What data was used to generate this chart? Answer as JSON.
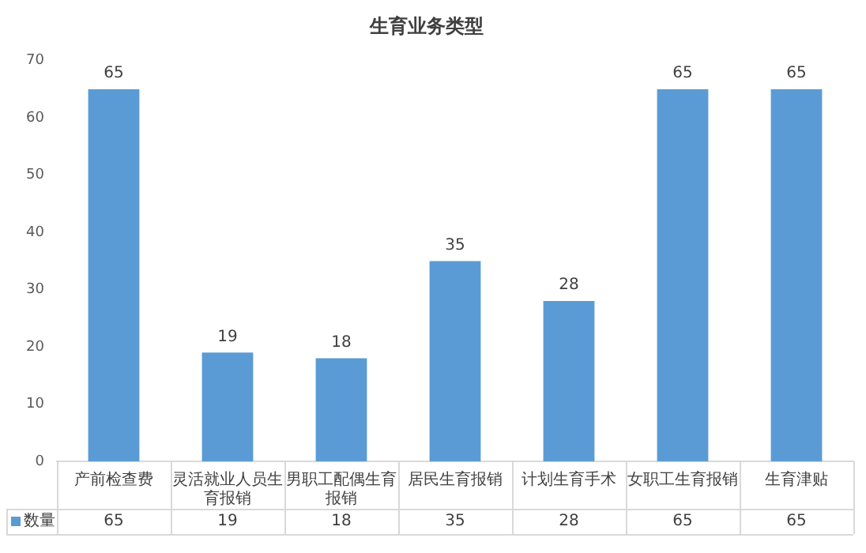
{
  "chart_data": {
    "type": "bar",
    "title": "生育业务类型",
    "categories": [
      "产前检查费",
      "灵活就业人员生育报销",
      "男职工配偶生育报销",
      "居民生育报销",
      "计划生育手术",
      "女职工生育报销",
      "生育津贴"
    ],
    "series": [
      {
        "name": "数量",
        "color": "#5b9bd5",
        "values": [
          65,
          19,
          18,
          35,
          28,
          65,
          65
        ],
        "value_labels": [
          "65",
          "19",
          "18",
          "35",
          "28",
          "65",
          "65"
        ]
      }
    ],
    "ylim": [
      0,
      70
    ],
    "yticks": [
      0,
      10,
      20,
      30,
      40,
      50,
      60,
      70
    ],
    "grid": false,
    "legend": "bottom",
    "data_labels": true
  }
}
